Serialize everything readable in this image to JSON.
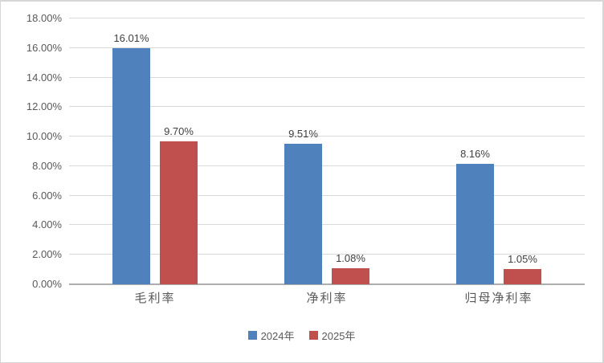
{
  "chart_data": {
    "type": "bar",
    "categories": [
      "毛利率",
      "净利率",
      "归母净利率"
    ],
    "series": [
      {
        "name": "2024年",
        "color": "#4F81BD",
        "values": [
          16.01,
          9.51,
          8.16
        ],
        "labels": [
          "16.01%",
          "9.51%",
          "8.16%"
        ]
      },
      {
        "name": "2025年",
        "color": "#C0504D",
        "values": [
          9.7,
          1.08,
          1.05
        ],
        "labels": [
          "9.70%",
          "1.08%",
          "1.05%"
        ]
      }
    ],
    "title": "",
    "xlabel": "",
    "ylabel": "",
    "ylim": [
      0,
      18
    ],
    "ytick_step": 2,
    "ytick_values": [
      0,
      2,
      4,
      6,
      8,
      10,
      12,
      14,
      16,
      18
    ],
    "ytick_labels": [
      "0.00%",
      "2.00%",
      "4.00%",
      "6.00%",
      "8.00%",
      "10.00%",
      "12.00%",
      "14.00%",
      "16.00%",
      "18.00%"
    ],
    "grid": true,
    "legend_position": "bottom",
    "colors": {
      "gridline": "#d9d9d9",
      "axis_line": "#aeaeae",
      "tick_text": "#595959",
      "data_label_text": "#3f3f3f",
      "frame_border": "#d6d6d6",
      "background": "#ffffff"
    }
  }
}
